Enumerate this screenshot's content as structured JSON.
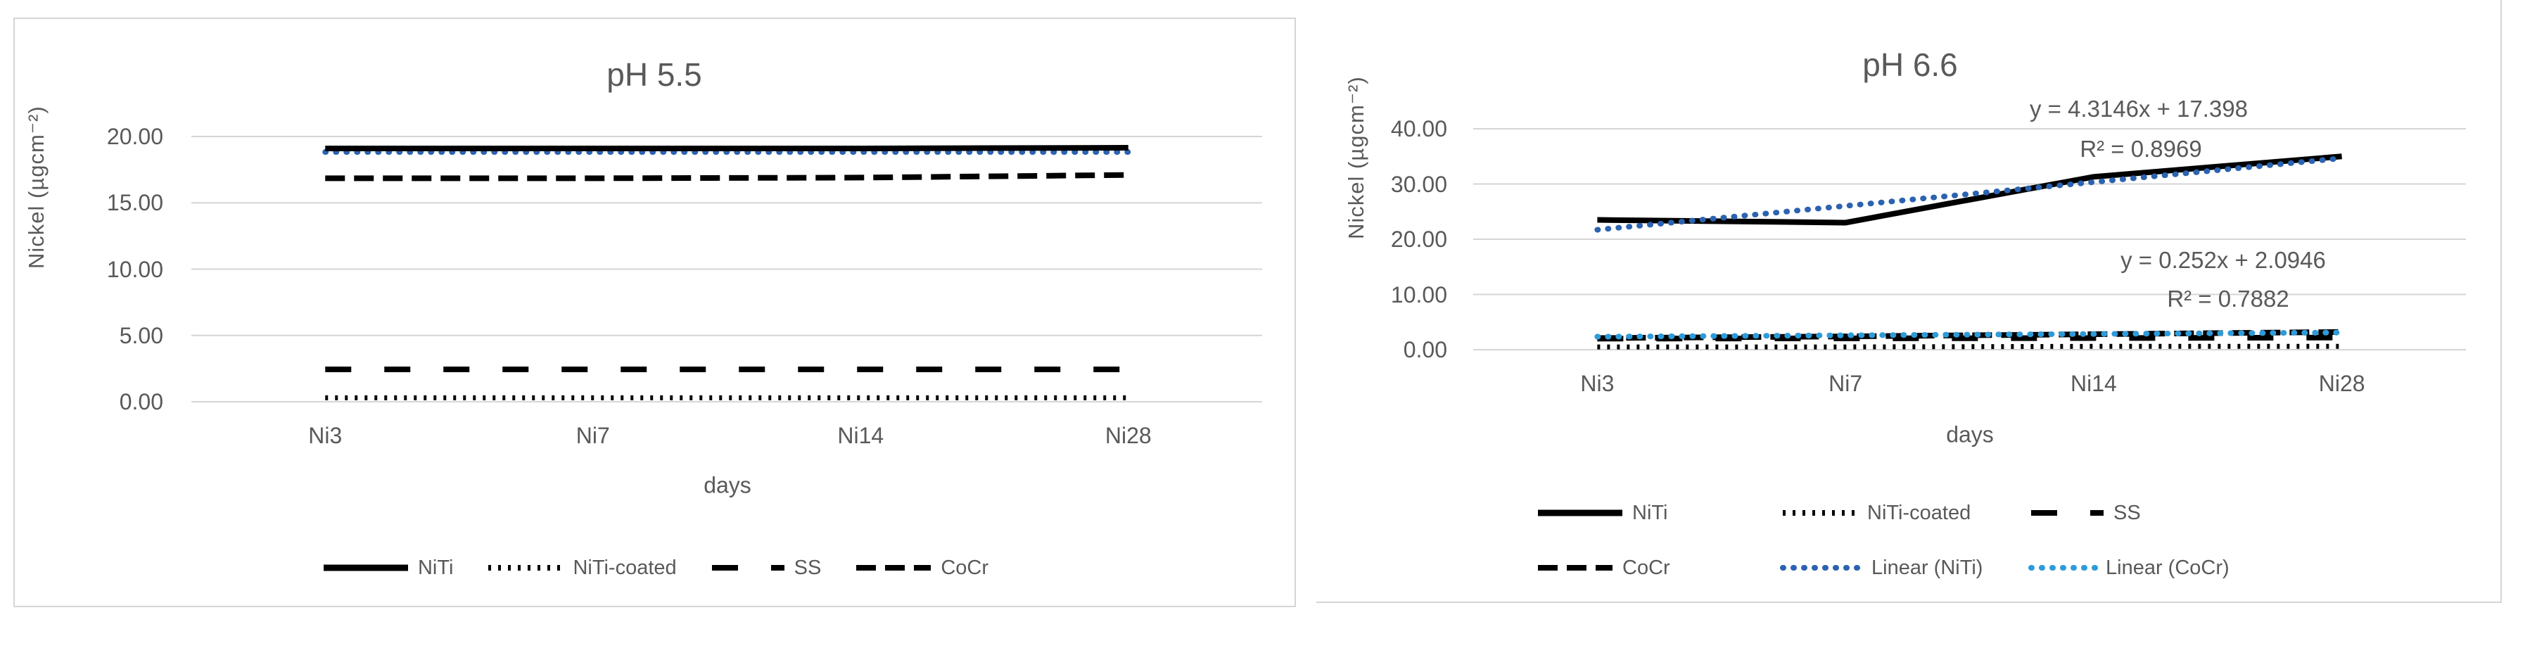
{
  "colors": {
    "grid": "#d5d5d5",
    "axis_text": "#595959",
    "series_black": "#000000",
    "linear_niti_blue": "#2B63B0",
    "linear_cocr_blue": "#2E9BD9",
    "panel_border": "#d5d5d5",
    "background": "#ffffff"
  },
  "chart_data": [
    {
      "type": "line",
      "title": "pH 5.5",
      "xlabel": "days",
      "ylabel": "Nickel (µgcm⁻²)",
      "categories": [
        "Ni3",
        "Ni7",
        "Ni14",
        "Ni28"
      ],
      "ylim": [
        0,
        20
      ],
      "grid": true,
      "legend_position": "bottom",
      "yticks": [
        {
          "value": 0,
          "label": "0.00"
        },
        {
          "value": 5,
          "label": "5.00"
        },
        {
          "value": 10,
          "label": "10.00"
        },
        {
          "value": 15,
          "label": "15.00"
        },
        {
          "value": 20,
          "label": "20.00"
        }
      ],
      "series": [
        {
          "name": "Linear (NiTi)",
          "line_style": "round-dot",
          "color": "#2B63B0",
          "values": [
            18.83,
            18.83,
            18.83,
            18.83
          ],
          "show_in_legend": false
        },
        {
          "name": "NiTi",
          "line_style": "solid",
          "color": "#000000",
          "values": [
            19.1,
            19.1,
            19.1,
            19.15
          ],
          "show_in_legend": true
        },
        {
          "name": "NiTi-coated",
          "line_style": "dotted",
          "color": "#000000",
          "values": [
            0.3,
            0.3,
            0.3,
            0.3
          ],
          "show_in_legend": true
        },
        {
          "name": "SS",
          "line_style": "long-dash",
          "color": "#000000",
          "values": [
            2.44,
            2.44,
            2.44,
            2.44
          ],
          "show_in_legend": true
        },
        {
          "name": "CoCr",
          "line_style": "dash",
          "color": "#000000",
          "values": [
            16.85,
            16.85,
            16.9,
            17.1
          ],
          "show_in_legend": true
        }
      ]
    },
    {
      "type": "line",
      "title": "pH 6.6",
      "xlabel": "days",
      "ylabel": "Nickel (µgcm⁻²)",
      "categories": [
        "Ni3",
        "Ni7",
        "Ni14",
        "Ni28"
      ],
      "ylim": [
        0,
        40
      ],
      "grid": true,
      "legend_position": "bottom",
      "yticks": [
        {
          "value": 0,
          "label": "0.00"
        },
        {
          "value": 10,
          "label": "10.00"
        },
        {
          "value": 20,
          "label": "20.00"
        },
        {
          "value": 30,
          "label": "30.00"
        },
        {
          "value": 40,
          "label": "40.00"
        }
      ],
      "annotations": [
        {
          "name": "niti-trendline-equation",
          "text": "y = 4.3146x + 17.398"
        },
        {
          "name": "niti-trendline-r2",
          "text": "R² = 0.8969"
        },
        {
          "name": "cocr-trendline-equation",
          "text": "y = 0.252x + 2.0946"
        },
        {
          "name": "cocr-trendline-r2",
          "text": "R² = 0.7882"
        }
      ],
      "series": [
        {
          "name": "NiTi",
          "line_style": "solid",
          "color": "#000000",
          "values": [
            23.5,
            23.0,
            31.3,
            35.0
          ],
          "show_in_legend": true
        },
        {
          "name": "NiTi-coated",
          "line_style": "dotted",
          "color": "#000000",
          "values": [
            0.5,
            0.5,
            0.6,
            0.6
          ],
          "show_in_legend": true
        },
        {
          "name": "SS",
          "line_style": "long-dash",
          "color": "#000000",
          "values": [
            2.0,
            2.05,
            2.1,
            2.2
          ],
          "show_in_legend": true
        },
        {
          "name": "CoCr",
          "line_style": "dash",
          "color": "#000000",
          "values": [
            2.1,
            2.4,
            2.8,
            3.2
          ],
          "show_in_legend": true
        },
        {
          "name": "Linear (NiTi)",
          "line_style": "round-dot",
          "color": "#2B63B0",
          "values": [
            21.71,
            26.03,
            30.34,
            34.66
          ],
          "show_in_legend": true
        },
        {
          "name": "Linear (CoCr)",
          "line_style": "round-dot",
          "color": "#2E9BD9",
          "values": [
            2.35,
            2.6,
            2.85,
            3.1
          ],
          "show_in_legend": true
        }
      ]
    }
  ]
}
